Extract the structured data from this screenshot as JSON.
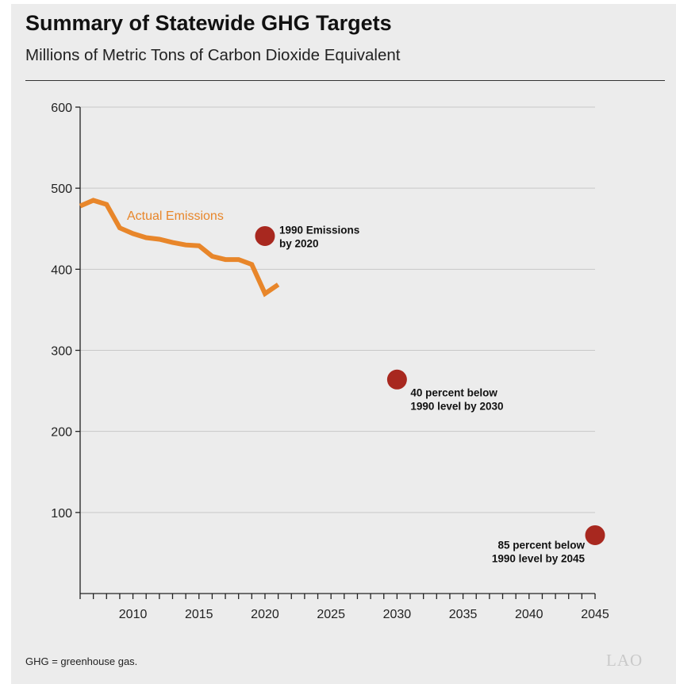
{
  "title": "Summary of Statewide GHG Targets",
  "subtitle": "Millions of Metric Tons of Carbon Dioxide Equivalent",
  "footnote": "GHG = greenhouse gas.",
  "logo": "LAO",
  "colors": {
    "line": "#e8862a",
    "target": "#a8281f",
    "grid": "#c8c8c8",
    "axis": "#222222"
  },
  "chart_data": {
    "type": "line",
    "xlim": [
      2006,
      2045
    ],
    "ylim": [
      0,
      600
    ],
    "yticks": [
      100,
      200,
      300,
      400,
      500,
      600
    ],
    "xticks": [
      2010,
      2015,
      2020,
      2025,
      2030,
      2035,
      2040,
      2045
    ],
    "grid": true,
    "series": [
      {
        "name": "Actual Emissions",
        "x": [
          2006,
          2007,
          2008,
          2009,
          2010,
          2011,
          2012,
          2013,
          2014,
          2015,
          2016,
          2017,
          2018,
          2019,
          2020,
          2021
        ],
        "y": [
          478,
          485,
          480,
          451,
          444,
          439,
          437,
          433,
          430,
          429,
          416,
          412,
          412,
          406,
          370,
          381
        ]
      }
    ],
    "targets": [
      {
        "x": 2020,
        "y": 441,
        "label_lines": [
          "1990 Emissions",
          "by 2020"
        ]
      },
      {
        "x": 2030,
        "y": 264,
        "label_lines": [
          "40 percent below",
          "1990 level by 2030"
        ]
      },
      {
        "x": 2045,
        "y": 72,
        "label_lines": [
          "85 percent below",
          "1990 level by 2045"
        ]
      }
    ]
  }
}
